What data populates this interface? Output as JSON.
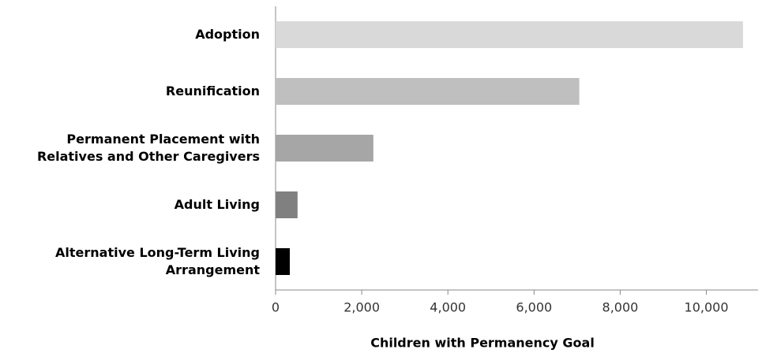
{
  "chart_data": {
    "type": "barh",
    "categories": [
      [
        "Adoption"
      ],
      [
        "Reunification"
      ],
      [
        "Permanent Placement with",
        "Relatives and Other Caregivers"
      ],
      [
        "Adult Living"
      ],
      [
        "Alternative Long-Term Living",
        "Arrangement"
      ]
    ],
    "values": [
      10850,
      7050,
      2270,
      510,
      330
    ],
    "colors": [
      "#d9d9d9",
      "#bfbfbf",
      "#a6a6a6",
      "#808080",
      "#000000"
    ],
    "xlabel": "Children with Permanency Goal",
    "xlim": [
      0,
      11200
    ],
    "xticks": [
      0,
      {
        "value": 2000,
        "label": "2,000"
      },
      {
        "value": 4000,
        "label": "4,000"
      },
      {
        "value": 6000,
        "label": "6,000"
      },
      {
        "value": 8000,
        "label": "8,000"
      },
      {
        "value": 10000,
        "label": "10,000"
      }
    ],
    "grid": false
  }
}
